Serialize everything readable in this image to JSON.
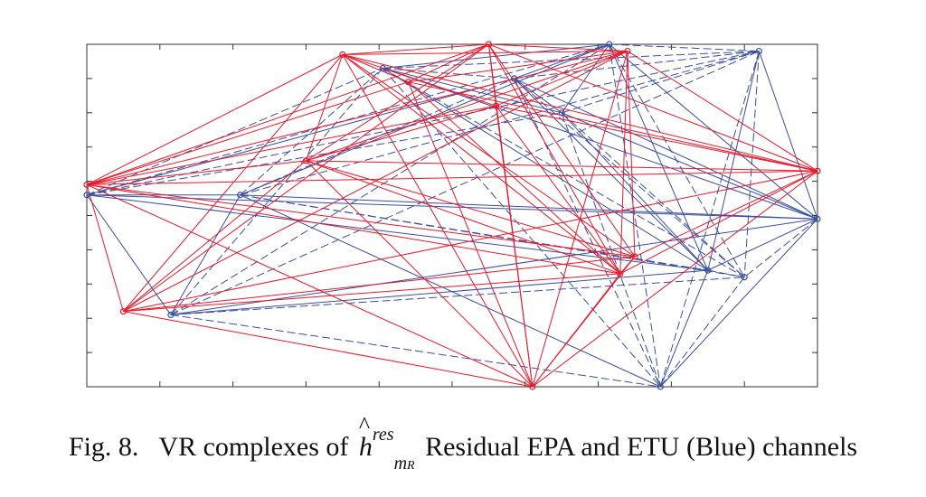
{
  "caption": {
    "fig_label": "Fig. 8.",
    "text_before": "VR complexes of",
    "math_base": "h",
    "math_hat": "^",
    "math_sup": "res",
    "math_sub": "m",
    "math_sub_sub": "R",
    "text_after": "Residual EPA and ETU (Blue) channels"
  },
  "chart_data": {
    "type": "network",
    "xlim": [
      0,
      10
    ],
    "ylim": [
      0,
      10
    ],
    "colors": {
      "EPA": "#e8192c",
      "ETU": "#3a4fa0"
    },
    "red_nodes": [
      {
        "id": "r0",
        "x": 0.0,
        "y": 5.9
      },
      {
        "id": "r1",
        "x": 0.5,
        "y": 2.2
      },
      {
        "id": "r2",
        "x": 3.5,
        "y": 9.7
      },
      {
        "id": "r3",
        "x": 3.0,
        "y": 6.6
      },
      {
        "id": "r4",
        "x": 4.4,
        "y": 8.9
      },
      {
        "id": "r5",
        "x": 5.5,
        "y": 10.0
      },
      {
        "id": "r6",
        "x": 5.6,
        "y": 8.2
      },
      {
        "id": "r7",
        "x": 7.4,
        "y": 9.8
      },
      {
        "id": "r8",
        "x": 7.3,
        "y": 3.3
      },
      {
        "id": "r9",
        "x": 7.5,
        "y": 3.8
      },
      {
        "id": "r10",
        "x": 6.1,
        "y": 0.0
      },
      {
        "id": "r11",
        "x": 10.0,
        "y": 6.3
      }
    ],
    "blue_nodes": [
      {
        "id": "b0",
        "x": 0.0,
        "y": 5.6
      },
      {
        "id": "b1",
        "x": 1.15,
        "y": 2.1
      },
      {
        "id": "b2",
        "x": 2.1,
        "y": 5.6
      },
      {
        "id": "b3",
        "x": 4.05,
        "y": 9.3
      },
      {
        "id": "b4",
        "x": 5.85,
        "y": 9.0
      },
      {
        "id": "b5",
        "x": 6.5,
        "y": 8.0
      },
      {
        "id": "b6",
        "x": 7.15,
        "y": 10.0
      },
      {
        "id": "b7",
        "x": 9.2,
        "y": 9.8
      },
      {
        "id": "b8",
        "x": 10.0,
        "y": 4.9
      },
      {
        "id": "b9",
        "x": 8.5,
        "y": 3.4
      },
      {
        "id": "b10",
        "x": 9.0,
        "y": 3.2
      },
      {
        "id": "b11",
        "x": 7.85,
        "y": 0.0
      }
    ],
    "red_edges": [
      [
        "r0",
        "r2"
      ],
      [
        "r0",
        "r3"
      ],
      [
        "r0",
        "r5"
      ],
      [
        "r0",
        "r6"
      ],
      [
        "r0",
        "r7"
      ],
      [
        "r0",
        "r8"
      ],
      [
        "r0",
        "r9"
      ],
      [
        "r0",
        "r10"
      ],
      [
        "r0",
        "r11"
      ],
      [
        "r0",
        "r1"
      ],
      [
        "r0",
        "r4"
      ],
      [
        "r1",
        "r2"
      ],
      [
        "r1",
        "r3"
      ],
      [
        "r1",
        "r5"
      ],
      [
        "r1",
        "r7"
      ],
      [
        "r1",
        "r8"
      ],
      [
        "r1",
        "r9"
      ],
      [
        "r1",
        "r10"
      ],
      [
        "r1",
        "r11"
      ],
      [
        "r2",
        "r5"
      ],
      [
        "r2",
        "r6"
      ],
      [
        "r2",
        "r7"
      ],
      [
        "r2",
        "r8"
      ],
      [
        "r2",
        "r9"
      ],
      [
        "r2",
        "r10"
      ],
      [
        "r2",
        "r11"
      ],
      [
        "r2",
        "r3"
      ],
      [
        "r2",
        "r4"
      ],
      [
        "r3",
        "r5"
      ],
      [
        "r3",
        "r7"
      ],
      [
        "r3",
        "r8"
      ],
      [
        "r3",
        "r9"
      ],
      [
        "r3",
        "r11"
      ],
      [
        "r3",
        "r6"
      ],
      [
        "r3",
        "r10"
      ],
      [
        "r4",
        "r7"
      ],
      [
        "r4",
        "r8"
      ],
      [
        "r4",
        "r11"
      ],
      [
        "r4",
        "r5"
      ],
      [
        "r4",
        "r10"
      ],
      [
        "r5",
        "r7"
      ],
      [
        "r5",
        "r8"
      ],
      [
        "r5",
        "r9"
      ],
      [
        "r5",
        "r10"
      ],
      [
        "r5",
        "r11"
      ],
      [
        "r5",
        "r6"
      ],
      [
        "r6",
        "r7"
      ],
      [
        "r6",
        "r8"
      ],
      [
        "r6",
        "r10"
      ],
      [
        "r6",
        "r11"
      ],
      [
        "r7",
        "r8"
      ],
      [
        "r7",
        "r9"
      ],
      [
        "r7",
        "r10"
      ],
      [
        "r7",
        "r11"
      ],
      [
        "r8",
        "r9"
      ],
      [
        "r8",
        "r10"
      ],
      [
        "r8",
        "r11"
      ],
      [
        "r9",
        "r11"
      ],
      [
        "r9",
        "r10"
      ],
      [
        "r10",
        "r11"
      ]
    ],
    "blue_edges": [
      {
        "a": "b0",
        "b": "b3",
        "style": "dashed"
      },
      {
        "a": "b0",
        "b": "b4",
        "style": "solid"
      },
      {
        "a": "b0",
        "b": "b6",
        "style": "dashed"
      },
      {
        "a": "b0",
        "b": "b7",
        "style": "dashed"
      },
      {
        "a": "b0",
        "b": "b8",
        "style": "solid"
      },
      {
        "a": "b0",
        "b": "b9",
        "style": "solid"
      },
      {
        "a": "b0",
        "b": "b2",
        "style": "solid"
      },
      {
        "a": "b0",
        "b": "b1",
        "style": "solid"
      },
      {
        "a": "b0",
        "b": "b5",
        "style": "dashed"
      },
      {
        "a": "b1",
        "b": "b2",
        "style": "solid"
      },
      {
        "a": "b1",
        "b": "b3",
        "style": "dashed"
      },
      {
        "a": "b1",
        "b": "b7",
        "style": "dashed"
      },
      {
        "a": "b1",
        "b": "b8",
        "style": "solid"
      },
      {
        "a": "b1",
        "b": "b9",
        "style": "solid"
      },
      {
        "a": "b1",
        "b": "b10",
        "style": "dashed"
      },
      {
        "a": "b1",
        "b": "b11",
        "style": "dashed"
      },
      {
        "a": "b1",
        "b": "b6",
        "style": "dashed"
      },
      {
        "a": "b2",
        "b": "b3",
        "style": "dashed"
      },
      {
        "a": "b2",
        "b": "b4",
        "style": "dashed"
      },
      {
        "a": "b2",
        "b": "b6",
        "style": "solid"
      },
      {
        "a": "b2",
        "b": "b7",
        "style": "dashed"
      },
      {
        "a": "b2",
        "b": "b8",
        "style": "solid"
      },
      {
        "a": "b2",
        "b": "b9",
        "style": "dashed"
      },
      {
        "a": "b2",
        "b": "b10",
        "style": "dashed"
      },
      {
        "a": "b2",
        "b": "b11",
        "style": "solid"
      },
      {
        "a": "b3",
        "b": "b6",
        "style": "solid"
      },
      {
        "a": "b3",
        "b": "b7",
        "style": "dashed"
      },
      {
        "a": "b3",
        "b": "b8",
        "style": "solid"
      },
      {
        "a": "b3",
        "b": "b9",
        "style": "solid"
      },
      {
        "a": "b3",
        "b": "b10",
        "style": "dashed"
      },
      {
        "a": "b3",
        "b": "b11",
        "style": "dashed"
      },
      {
        "a": "b3",
        "b": "b5",
        "style": "solid"
      },
      {
        "a": "b3",
        "b": "b4",
        "style": "dashed"
      },
      {
        "a": "b4",
        "b": "b6",
        "style": "solid"
      },
      {
        "a": "b4",
        "b": "b7",
        "style": "dashed"
      },
      {
        "a": "b4",
        "b": "b8",
        "style": "solid"
      },
      {
        "a": "b4",
        "b": "b9",
        "style": "solid"
      },
      {
        "a": "b4",
        "b": "b10",
        "style": "dashed"
      },
      {
        "a": "b4",
        "b": "b11",
        "style": "dashed"
      },
      {
        "a": "b4",
        "b": "b5",
        "style": "solid"
      },
      {
        "a": "b5",
        "b": "b7",
        "style": "dashed"
      },
      {
        "a": "b5",
        "b": "b8",
        "style": "solid"
      },
      {
        "a": "b5",
        "b": "b9",
        "style": "solid"
      },
      {
        "a": "b5",
        "b": "b10",
        "style": "dashed"
      },
      {
        "a": "b5",
        "b": "b11",
        "style": "dashed"
      },
      {
        "a": "b5",
        "b": "b6",
        "style": "solid"
      },
      {
        "a": "b6",
        "b": "b7",
        "style": "dashed"
      },
      {
        "a": "b6",
        "b": "b8",
        "style": "solid"
      },
      {
        "a": "b6",
        "b": "b9",
        "style": "solid"
      },
      {
        "a": "b6",
        "b": "b10",
        "style": "dashed"
      },
      {
        "a": "b6",
        "b": "b11",
        "style": "dashed"
      },
      {
        "a": "b7",
        "b": "b8",
        "style": "solid"
      },
      {
        "a": "b7",
        "b": "b9",
        "style": "solid"
      },
      {
        "a": "b7",
        "b": "b10",
        "style": "dashed"
      },
      {
        "a": "b7",
        "b": "b11",
        "style": "dashed"
      },
      {
        "a": "b8",
        "b": "b9",
        "style": "solid"
      },
      {
        "a": "b8",
        "b": "b10",
        "style": "dashed"
      },
      {
        "a": "b8",
        "b": "b11",
        "style": "solid"
      },
      {
        "a": "b9",
        "b": "b10",
        "style": "dashed"
      },
      {
        "a": "b9",
        "b": "b11",
        "style": "solid"
      },
      {
        "a": "b10",
        "b": "b11",
        "style": "dashed"
      }
    ]
  }
}
